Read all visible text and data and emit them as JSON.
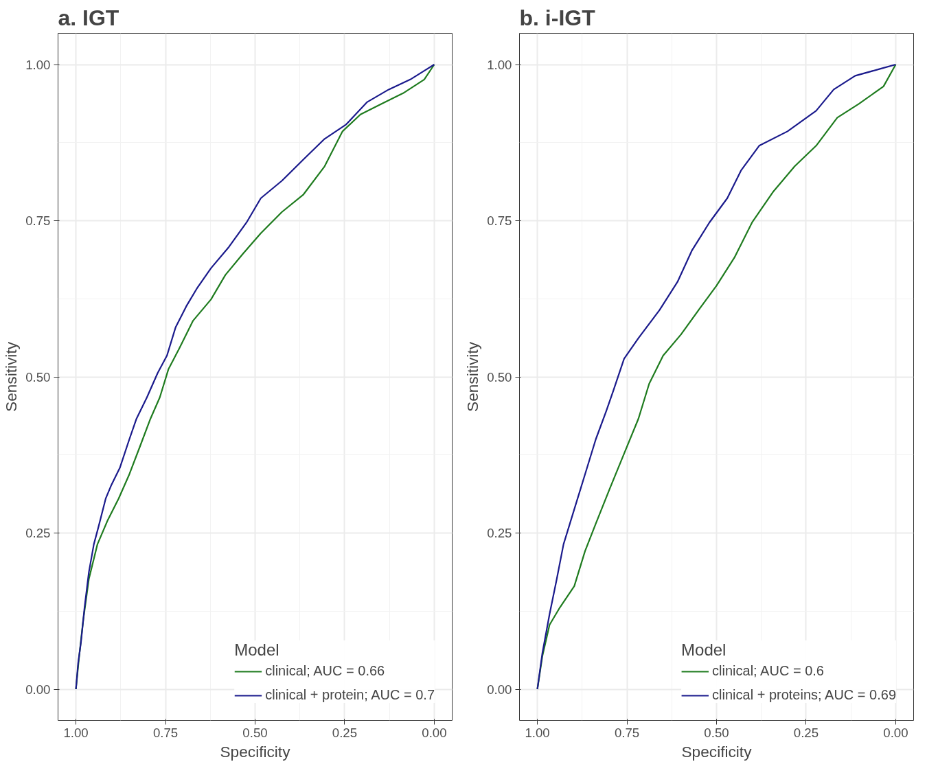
{
  "chart_data": [
    {
      "type": "line",
      "title": "a. IGT",
      "xlabel": "Specificity",
      "ylabel": "Sensitivity",
      "legend_title": "Model",
      "legend": "bottom right",
      "grid": true,
      "xlim": [
        1.05,
        -0.05
      ],
      "ylim": [
        -0.05,
        1.05
      ],
      "xticks": [
        {
          "value": 1,
          "label": "1.00"
        },
        {
          "value": 0.75,
          "label": "0.75"
        },
        {
          "value": 0.5,
          "label": "0.50"
        },
        {
          "value": 0.25,
          "label": "0.25"
        },
        {
          "value": 0,
          "label": "0.00"
        }
      ],
      "yticks": [
        {
          "value": 0,
          "label": "0.00"
        },
        {
          "value": 0.25,
          "label": "0.25"
        },
        {
          "value": 0.5,
          "label": "0.50"
        },
        {
          "value": 0.75,
          "label": "0.75"
        },
        {
          "value": 1,
          "label": "1.00"
        }
      ],
      "series": [
        {
          "name": "clinical; AUC = 0.66",
          "color": "#1e7b1e",
          "x": [
            1,
            0.992,
            0.98,
            0.964,
            0.94,
            0.911,
            0.881,
            0.851,
            0.821,
            0.792,
            0.766,
            0.742,
            0.712,
            0.673,
            0.623,
            0.583,
            0.534,
            0.484,
            0.425,
            0.365,
            0.306,
            0.256,
            0.206,
            0.147,
            0.087,
            0.028,
            0
          ],
          "values": [
            0,
            0.047,
            0.109,
            0.176,
            0.232,
            0.271,
            0.305,
            0.344,
            0.389,
            0.433,
            0.467,
            0.512,
            0.545,
            0.59,
            0.624,
            0.663,
            0.697,
            0.73,
            0.764,
            0.792,
            0.837,
            0.893,
            0.92,
            0.937,
            0.954,
            0.976,
            1
          ]
        },
        {
          "name": "clinical + protein; AUC = 0.7",
          "color": "#1a1a8c",
          "x": [
            1,
            0.994,
            0.986,
            0.976,
            0.964,
            0.95,
            0.937,
            0.917,
            0.901,
            0.877,
            0.851,
            0.831,
            0.802,
            0.772,
            0.746,
            0.722,
            0.692,
            0.663,
            0.623,
            0.573,
            0.524,
            0.484,
            0.425,
            0.365,
            0.306,
            0.246,
            0.187,
            0.127,
            0.067,
            0.028,
            0
          ],
          "values": [
            0,
            0.041,
            0.075,
            0.131,
            0.187,
            0.232,
            0.26,
            0.305,
            0.327,
            0.355,
            0.4,
            0.433,
            0.467,
            0.506,
            0.534,
            0.579,
            0.613,
            0.641,
            0.674,
            0.708,
            0.747,
            0.786,
            0.814,
            0.848,
            0.881,
            0.904,
            0.94,
            0.96,
            0.976,
            0.99,
            1
          ]
        }
      ]
    },
    {
      "type": "line",
      "title": "b. i-IGT",
      "xlabel": "Specificity",
      "ylabel": "Sensitivity",
      "legend_title": "Model",
      "legend": "bottom right",
      "grid": true,
      "xlim": [
        1.05,
        -0.05
      ],
      "ylim": [
        -0.05,
        1.05
      ],
      "xticks": [
        {
          "value": 1,
          "label": "1.00"
        },
        {
          "value": 0.75,
          "label": "0.75"
        },
        {
          "value": 0.5,
          "label": "0.50"
        },
        {
          "value": 0.25,
          "label": "0.25"
        },
        {
          "value": 0,
          "label": "0.00"
        }
      ],
      "yticks": [
        {
          "value": 0,
          "label": "0.00"
        },
        {
          "value": 0.25,
          "label": "0.25"
        },
        {
          "value": 0.5,
          "label": "0.50"
        },
        {
          "value": 0.75,
          "label": "0.75"
        },
        {
          "value": 1,
          "label": "1.00"
        }
      ],
      "series": [
        {
          "name": "clinical; AUC = 0.6",
          "color": "#1e7b1e",
          "x": [
            1,
            0.986,
            0.966,
            0.937,
            0.897,
            0.867,
            0.837,
            0.798,
            0.758,
            0.718,
            0.688,
            0.649,
            0.599,
            0.55,
            0.5,
            0.45,
            0.401,
            0.341,
            0.282,
            0.222,
            0.163,
            0.103,
            0.034,
            0
          ],
          "values": [
            0,
            0.053,
            0.103,
            0.131,
            0.165,
            0.221,
            0.265,
            0.321,
            0.377,
            0.433,
            0.489,
            0.534,
            0.568,
            0.607,
            0.646,
            0.691,
            0.747,
            0.797,
            0.837,
            0.87,
            0.915,
            0.937,
            0.965,
            1
          ]
        },
        {
          "name": "clinical + proteins; AUC = 0.69",
          "color": "#1a1a8c",
          "x": [
            1,
            0.986,
            0.966,
            0.946,
            0.927,
            0.897,
            0.867,
            0.837,
            0.808,
            0.788,
            0.758,
            0.718,
            0.659,
            0.609,
            0.569,
            0.52,
            0.47,
            0.431,
            0.381,
            0.302,
            0.222,
            0.173,
            0.113,
            0.044,
            0
          ],
          "values": [
            0,
            0.058,
            0.12,
            0.176,
            0.232,
            0.288,
            0.344,
            0.4,
            0.445,
            0.478,
            0.529,
            0.562,
            0.607,
            0.652,
            0.702,
            0.747,
            0.786,
            0.831,
            0.87,
            0.893,
            0.926,
            0.96,
            0.982,
            0.993,
            1
          ]
        }
      ]
    }
  ]
}
